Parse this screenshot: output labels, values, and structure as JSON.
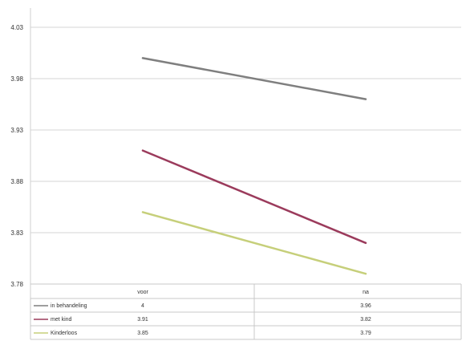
{
  "chart_data": {
    "type": "line",
    "categories": [
      "voor",
      "na"
    ],
    "yticks": [
      "4.03",
      "3.98",
      "3.93",
      "3.88",
      "3.83",
      "3.78"
    ],
    "ylim": [
      3.78,
      4.03
    ],
    "grid": true,
    "legend": "data-table",
    "series": [
      {
        "name": "in behandeling",
        "values": [
          4,
          3.96
        ],
        "table": [
          "4",
          "3.96"
        ],
        "color": "#7f7f7f"
      },
      {
        "name": "met kind",
        "values": [
          3.91,
          3.82
        ],
        "table": [
          "3.91",
          "3.82"
        ],
        "color": "#9b3b5c"
      },
      {
        "name": "Kinderloos",
        "values": [
          3.85,
          3.79
        ],
        "table": [
          "3.85",
          "3.79"
        ],
        "color": "#c6cf7a"
      }
    ]
  }
}
